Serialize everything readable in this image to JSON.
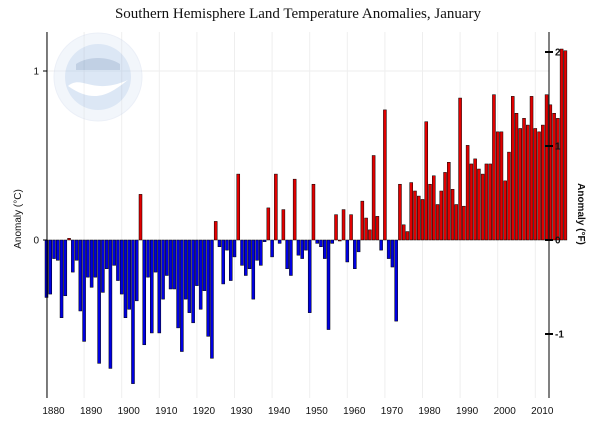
{
  "chart_data": {
    "type": "bar",
    "title": "Southern Hemisphere Land Temperature Anomalies, January",
    "ylabel_left": "Anomaly (°C)",
    "ylabel_right": "Anomaly (°F)",
    "xlabel": "",
    "xlim": [
      1880,
      2014
    ],
    "ylim_c": [
      -0.9,
      1.2
    ],
    "left_ticks": [
      {
        "value": -1,
        "label": ""
      },
      {
        "value": 0,
        "label": "0"
      },
      {
        "value": 1,
        "label": "1"
      }
    ],
    "right_ticks": [
      {
        "value": -1,
        "label": "-1"
      },
      {
        "value": 0,
        "label": "0"
      },
      {
        "value": 1,
        "label": "1"
      },
      {
        "value": 2,
        "label": "2"
      }
    ],
    "x_ticks": [
      "1880",
      "1890",
      "1900",
      "1910",
      "1920",
      "1930",
      "1940",
      "1950",
      "1960",
      "1970",
      "1980",
      "1990",
      "2000",
      "2010"
    ],
    "x_tick_values": [
      1880,
      1890,
      1900,
      1910,
      1920,
      1930,
      1940,
      1950,
      1960,
      1970,
      1980,
      1990,
      2000,
      2010
    ],
    "years_start": 1880,
    "values": [
      -0.34,
      -0.32,
      -0.11,
      -0.12,
      -0.46,
      -0.33,
      0.01,
      -0.19,
      -0.12,
      -0.42,
      -0.6,
      -0.22,
      -0.28,
      -0.22,
      -0.73,
      -0.31,
      -0.17,
      -0.76,
      -0.15,
      -0.24,
      -0.32,
      -0.46,
      -0.41,
      -0.85,
      -0.36,
      0.27,
      -0.62,
      -0.22,
      -0.55,
      -0.19,
      -0.55,
      -0.35,
      -0.21,
      -0.29,
      -0.29,
      -0.52,
      -0.66,
      -0.35,
      -0.43,
      -0.49,
      -0.27,
      -0.41,
      -0.3,
      -0.57,
      -0.7,
      0.11,
      -0.04,
      -0.26,
      -0.06,
      -0.24,
      -0.1,
      0.39,
      -0.15,
      -0.21,
      -0.17,
      -0.35,
      -0.12,
      -0.15,
      -0.01,
      0.19,
      -0.1,
      0.39,
      -0.02,
      0.18,
      -0.17,
      -0.21,
      0.36,
      -0.09,
      -0.11,
      -0.06,
      -0.43,
      0.33,
      -0.02,
      -0.04,
      -0.11,
      -0.53,
      -0.02,
      0.15,
      0.0,
      0.18,
      -0.13,
      0.15,
      -0.17,
      -0.07,
      0.23,
      0.13,
      0.06,
      0.5,
      0.14,
      -0.06,
      0.77,
      -0.11,
      -0.16,
      -0.48,
      0.33,
      0.09,
      0.05,
      0.34,
      0.29,
      0.26,
      0.24,
      0.7,
      0.33,
      0.38,
      0.21,
      0.29,
      0.4,
      0.46,
      0.3,
      0.21,
      0.84,
      0.2,
      0.56,
      0.45,
      0.48,
      0.42,
      0.39,
      0.45,
      0.45,
      0.86,
      0.64,
      0.64,
      0.35,
      0.52,
      0.85,
      0.75,
      0.66,
      0.72,
      0.68,
      0.85,
      0.66,
      0.64,
      0.68,
      0.86,
      0.8,
      0.75,
      0.72,
      1.13,
      1.12
    ],
    "colors": {
      "positive": "#e00000",
      "negative": "#0000e0",
      "bar_stroke": "#000000",
      "grid": "#eeeeee",
      "axis": "#000000"
    },
    "grid": true,
    "logo": "noaa-logo"
  }
}
